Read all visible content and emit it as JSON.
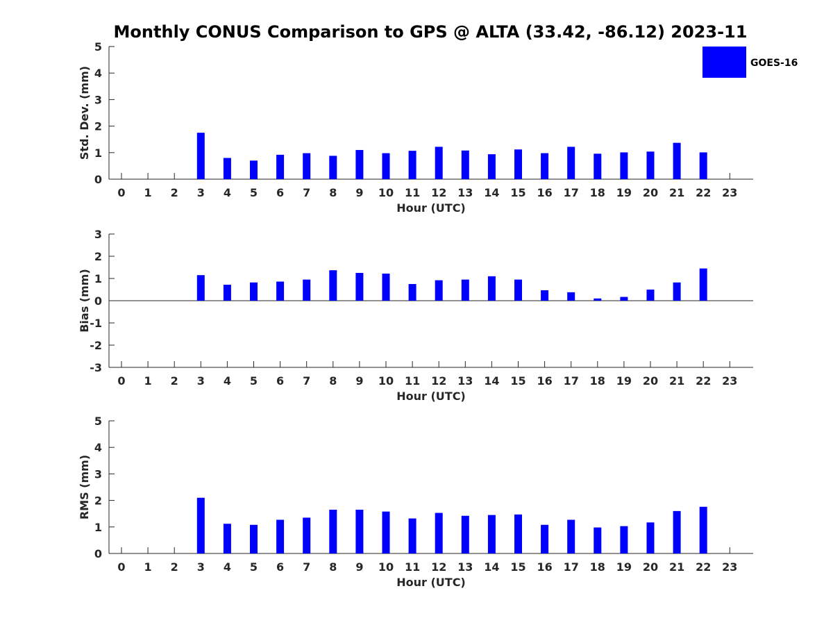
{
  "title": "Monthly CONUS Comparison to GPS @ ALTA (33.42, -86.12) 2023-11",
  "legend": {
    "label": "GOES-16",
    "color": "#0000ff"
  },
  "chart_data": [
    {
      "type": "bar",
      "name": "std-dev",
      "xlabel": "Hour (UTC)",
      "ylabel": "Std. Dev. (mm)",
      "ylim": [
        0,
        5
      ],
      "yticks": [
        0,
        1,
        2,
        3,
        4,
        5
      ],
      "categories": [
        "0",
        "1",
        "2",
        "3",
        "4",
        "5",
        "6",
        "7",
        "8",
        "9",
        "10",
        "11",
        "12",
        "13",
        "14",
        "15",
        "16",
        "17",
        "18",
        "19",
        "20",
        "21",
        "22",
        "23"
      ],
      "series": [
        {
          "name": "GOES-16",
          "color": "#0000ff",
          "values": [
            null,
            null,
            null,
            1.75,
            0.8,
            0.7,
            0.92,
            0.98,
            0.88,
            1.1,
            0.98,
            1.07,
            1.22,
            1.08,
            0.94,
            1.12,
            0.98,
            1.22,
            0.96,
            1.01,
            1.04,
            1.37,
            1.01,
            null
          ]
        }
      ]
    },
    {
      "type": "bar",
      "name": "bias",
      "xlabel": "Hour (UTC)",
      "ylabel": "Bias (mm)",
      "ylim": [
        -3,
        3
      ],
      "yticks": [
        -3,
        -2,
        -1,
        0,
        1,
        2,
        3
      ],
      "zero_line": true,
      "categories": [
        "0",
        "1",
        "2",
        "3",
        "4",
        "5",
        "6",
        "7",
        "8",
        "9",
        "10",
        "11",
        "12",
        "13",
        "14",
        "15",
        "16",
        "17",
        "18",
        "19",
        "20",
        "21",
        "22",
        "23"
      ],
      "series": [
        {
          "name": "GOES-16",
          "color": "#0000ff",
          "values": [
            null,
            null,
            null,
            1.15,
            0.72,
            0.82,
            0.86,
            0.95,
            1.37,
            1.25,
            1.22,
            0.75,
            0.92,
            0.95,
            1.1,
            0.95,
            0.47,
            0.38,
            0.1,
            0.17,
            0.5,
            0.82,
            1.45,
            null
          ]
        }
      ]
    },
    {
      "type": "bar",
      "name": "rms",
      "xlabel": "Hour (UTC)",
      "ylabel": "RMS (mm)",
      "ylim": [
        0,
        5
      ],
      "yticks": [
        0,
        1,
        2,
        3,
        4,
        5
      ],
      "categories": [
        "0",
        "1",
        "2",
        "3",
        "4",
        "5",
        "6",
        "7",
        "8",
        "9",
        "10",
        "11",
        "12",
        "13",
        "14",
        "15",
        "16",
        "17",
        "18",
        "19",
        "20",
        "21",
        "22",
        "23"
      ],
      "series": [
        {
          "name": "GOES-16",
          "color": "#0000ff",
          "values": [
            null,
            null,
            null,
            2.1,
            1.12,
            1.08,
            1.27,
            1.35,
            1.65,
            1.65,
            1.58,
            1.32,
            1.53,
            1.42,
            1.45,
            1.47,
            1.08,
            1.27,
            0.98,
            1.03,
            1.17,
            1.6,
            1.76,
            null
          ]
        }
      ]
    }
  ]
}
